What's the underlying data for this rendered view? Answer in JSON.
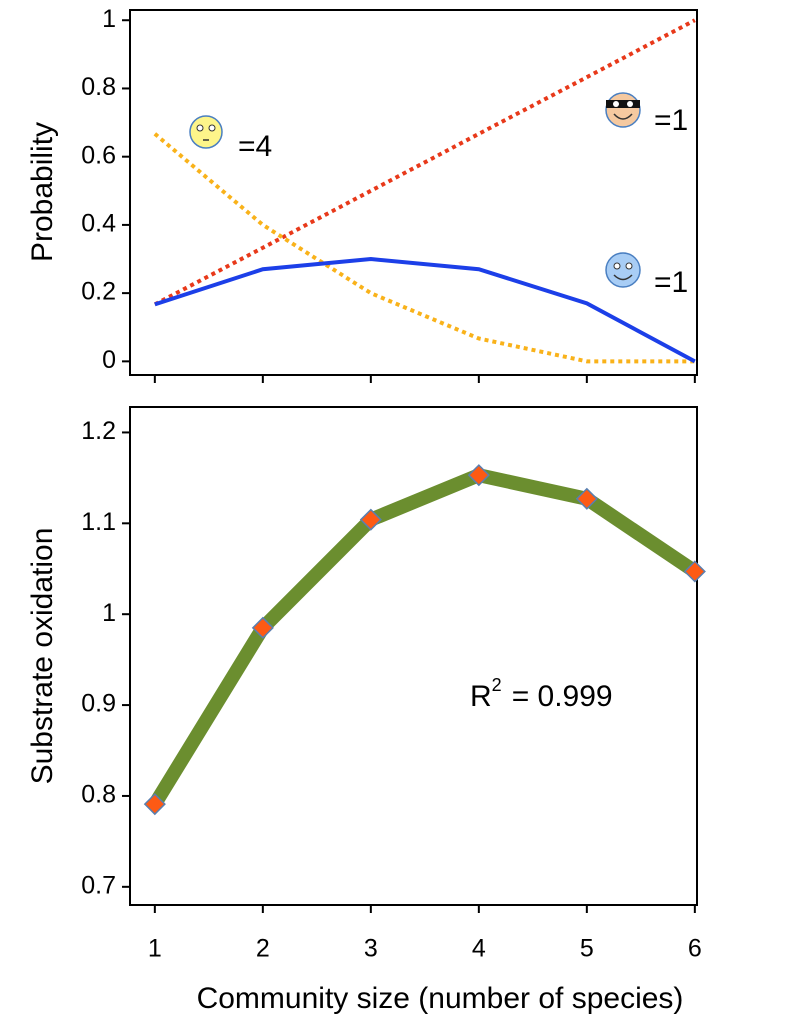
{
  "chart_data": [
    {
      "type": "line",
      "ylabel": "Probability",
      "x": [
        1,
        2,
        3,
        4,
        5,
        6
      ],
      "xlim": [
        0.77,
        6.02
      ],
      "ylim": [
        -0.04,
        1.03
      ],
      "yticks": [
        0.0,
        0.2,
        0.4,
        0.6,
        0.8,
        1.0
      ],
      "series": [
        {
          "color": "#e8391a",
          "style": "dotted",
          "values": [
            0.167,
            0.333,
            0.5,
            0.667,
            0.833,
            1.0
          ]
        },
        {
          "color": "#f9b21a",
          "style": "dotted",
          "values": [
            0.667,
            0.4,
            0.2,
            0.067,
            0.0,
            0.0
          ]
        },
        {
          "color": "#1c3fe8",
          "style": "solid",
          "values": [
            0.167,
            0.27,
            0.3,
            0.27,
            0.17,
            0.0
          ]
        }
      ],
      "annotations": [
        "=4",
        "=1",
        "=1"
      ]
    },
    {
      "type": "line",
      "ylabel": "Substrate oxidation",
      "xlabel": "Community size (number of species)",
      "x": [
        1,
        2,
        3,
        4,
        5,
        6
      ],
      "xlim": [
        0.77,
        6.02
      ],
      "xticks": [
        1,
        2,
        3,
        4,
        5,
        6
      ],
      "ylim": [
        0.68,
        1.228
      ],
      "yticks": [
        0.7,
        0.8,
        0.9,
        1.0,
        1.1,
        1.2
      ],
      "series": [
        {
          "color": "#6b8e2f",
          "marker_color": "#fd5a14",
          "style": "solid",
          "values": [
            0.791,
            0.985,
            1.104,
            1.153,
            1.127,
            1.047
          ]
        }
      ],
      "annotation": {
        "base": "R",
        "superscript": "2",
        "text": "= 0.999"
      }
    }
  ]
}
